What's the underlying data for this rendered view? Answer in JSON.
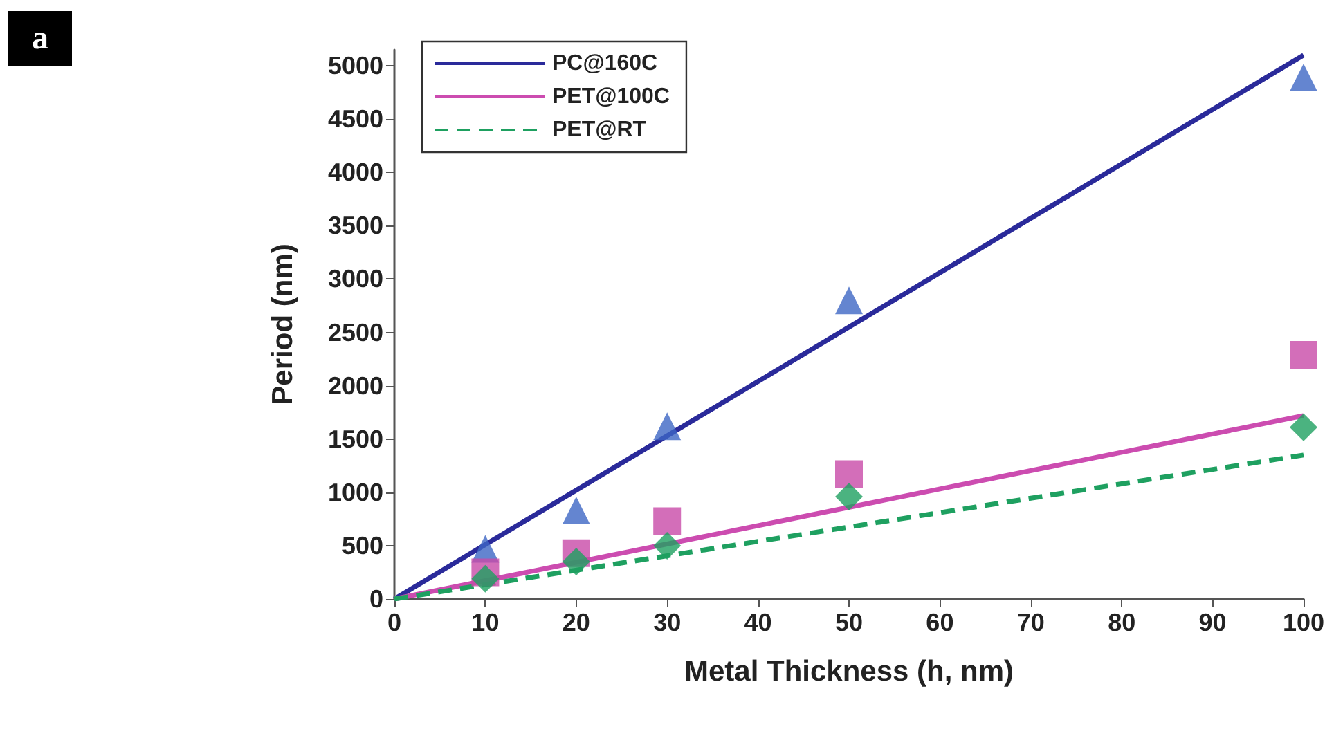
{
  "chart_data": {
    "type": "line",
    "xlabel": "Metal Thickness (h, nm)",
    "ylabel": "Period (nm)",
    "annotations": [
      "a"
    ],
    "xlim": [
      0,
      100
    ],
    "xticks": [
      0,
      10,
      20,
      30,
      40,
      50,
      60,
      70,
      80,
      90,
      100
    ],
    "ylim": [
      0,
      5150
    ],
    "yticks": [
      0,
      500,
      1000,
      1500,
      2000,
      2500,
      3000,
      3500,
      4000,
      4500,
      5000
    ],
    "grid": false,
    "legend": "top left",
    "series": [
      {
        "name": "PC@160C",
        "color": "#2a2a9a",
        "line_style": "solid",
        "marker": "none",
        "x": [
          0,
          100
        ],
        "values": [
          0,
          5100
        ]
      },
      {
        "name": "PET@100C",
        "color": "#cc4cb0",
        "line_style": "solid",
        "marker": "none",
        "x": [
          0,
          100
        ],
        "values": [
          0,
          1720
        ]
      },
      {
        "name": "PET@RT",
        "color": "#1ea060",
        "line_style": "dashed",
        "marker": "none",
        "x": [
          0,
          100
        ],
        "values": [
          0,
          1350
        ]
      },
      {
        "type": "scatter",
        "color": "#3d66c4",
        "marker": "triangle",
        "x": [
          10,
          20,
          30,
          50,
          100
        ],
        "values": [
          470,
          830,
          1620,
          2800,
          4890
        ]
      },
      {
        "type": "scatter",
        "color": "#c84aa8",
        "marker": "square",
        "x": [
          10,
          20,
          30,
          50,
          100
        ],
        "values": [
          250,
          430,
          730,
          1170,
          2290
        ]
      },
      {
        "type": "scatter",
        "color": "#1ea060",
        "marker": "diamond",
        "x": [
          10,
          20,
          30,
          50,
          100
        ],
        "values": [
          190,
          350,
          500,
          960,
          1610
        ]
      }
    ]
  }
}
